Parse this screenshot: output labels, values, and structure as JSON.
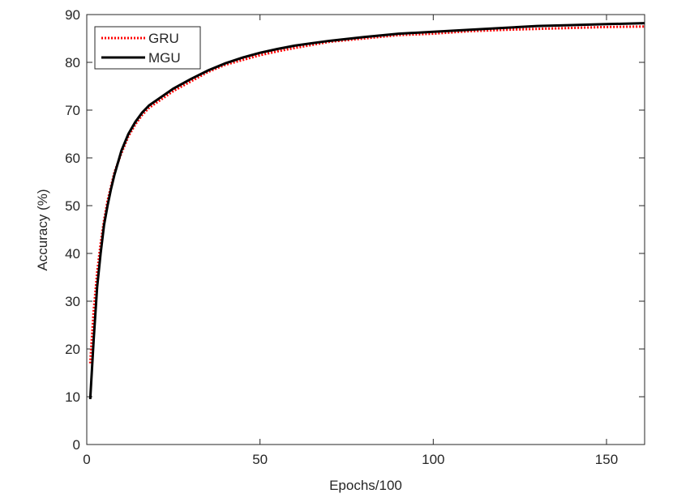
{
  "chart_data": {
    "type": "line",
    "x_label": "Epochs/100",
    "y_label": "Accuracy (%)",
    "x": [
      1,
      2,
      3,
      4,
      5,
      6,
      7,
      8,
      9,
      10,
      12,
      14,
      16,
      18,
      20,
      25,
      30,
      35,
      40,
      45,
      50,
      55,
      60,
      70,
      80,
      90,
      100,
      110,
      120,
      130,
      140,
      150,
      161
    ],
    "series": [
      {
        "name": "GRU",
        "color": "#ff0000",
        "line_style": "dotted",
        "values": [
          17,
          28,
          36,
          42,
          47,
          51,
          54,
          57,
          59,
          61,
          64.5,
          67,
          69,
          70.5,
          71.5,
          74,
          76,
          78,
          79.5,
          80.5,
          81.5,
          82.3,
          83,
          84.3,
          85,
          85.7,
          86,
          86.5,
          86.8,
          87,
          87.2,
          87.4,
          87.5
        ]
      },
      {
        "name": "MGU",
        "color": "#000000",
        "line_style": "solid",
        "values": [
          9.5,
          22,
          33,
          40,
          46,
          50,
          53.5,
          56.5,
          59,
          61.5,
          65,
          67.5,
          69.5,
          71,
          72,
          74.5,
          76.5,
          78.3,
          79.8,
          81,
          82,
          82.8,
          83.5,
          84.5,
          85.3,
          86,
          86.4,
          86.8,
          87.2,
          87.6,
          87.8,
          88,
          88.2
        ]
      }
    ],
    "xlim": [
      0,
      161
    ],
    "ylim": [
      0,
      90
    ],
    "xticks": [
      0,
      50,
      100,
      150
    ],
    "yticks": [
      0,
      10,
      20,
      30,
      40,
      50,
      60,
      70,
      80,
      90
    ],
    "legend": "top-left"
  }
}
